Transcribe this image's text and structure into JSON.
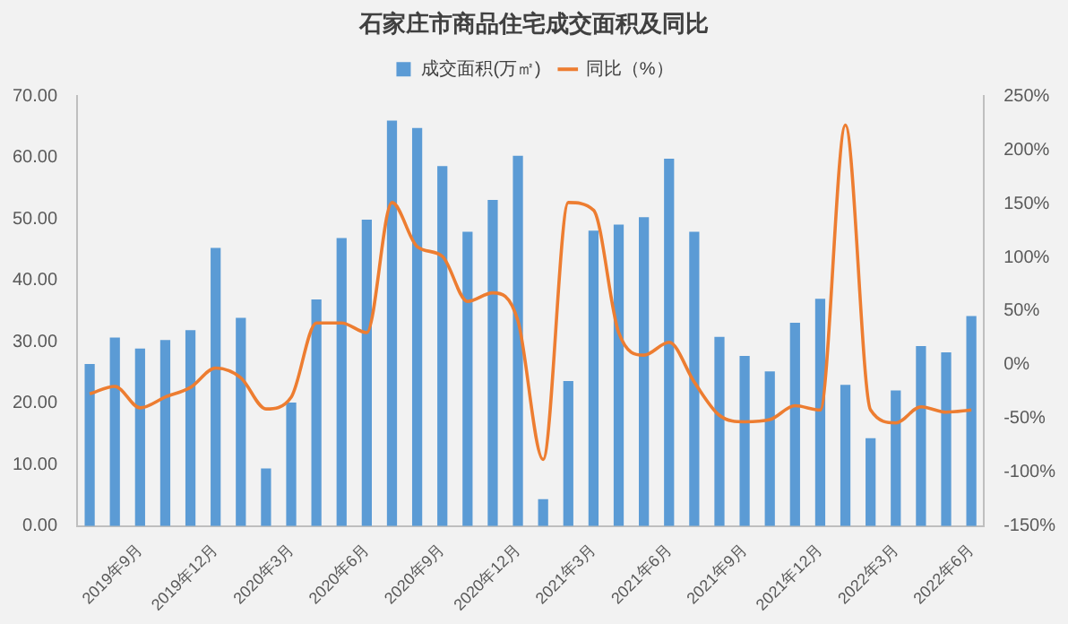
{
  "chart_data": {
    "type": "bar",
    "title": "石家庄市商品住宅成交面积及同比",
    "categories": [
      null,
      null,
      "2019年9月",
      null,
      null,
      "2019年12月",
      null,
      null,
      "2020年3月",
      null,
      null,
      "2020年6月",
      null,
      null,
      "2020年9月",
      null,
      null,
      "2020年12月",
      null,
      null,
      "2021年3月",
      null,
      null,
      "2021年6月",
      null,
      null,
      "2021年9月",
      null,
      null,
      "2021年12月",
      null,
      null,
      "2022年3月",
      null,
      null,
      "2022年6月"
    ],
    "series": [
      {
        "name": "成交面积(万㎡)",
        "color": "#5b9bd5",
        "values": [
          26.4,
          30.7,
          28.9,
          30.3,
          31.9,
          45.3,
          33.9,
          9.4,
          20.1,
          36.9,
          46.9,
          49.9,
          66.0,
          64.8,
          58.6,
          47.9,
          53.1,
          60.3,
          4.4,
          23.6,
          48.1,
          49.1,
          50.3,
          59.8,
          47.9,
          30.8,
          27.7,
          25.2,
          33.1,
          37.0,
          23.0,
          14.3,
          22.1,
          29.3,
          28.3,
          34.2
        ]
      },
      {
        "name": "同比（%）",
        "type": "line",
        "axis": "y2",
        "color": "#ed7d31",
        "marker": "none",
        "values": [
          -27,
          -20,
          -40,
          -30,
          -21,
          -3,
          -12,
          -41,
          -30,
          39,
          39,
          30,
          151,
          110,
          101,
          59,
          67,
          41,
          -88,
          151,
          144,
          30,
          9,
          21,
          -16,
          -47,
          -53,
          -51,
          -38,
          -42,
          223,
          -42,
          -54,
          -39,
          -44,
          -42
        ]
      }
    ],
    "ylim": [
      0,
      70
    ],
    "yticks": [
      {
        "value": 0,
        "label": "0.00"
      },
      {
        "value": 10,
        "label": "10.00"
      },
      {
        "value": 20,
        "label": "20.00"
      },
      {
        "value": 30,
        "label": "30.00"
      },
      {
        "value": 40,
        "label": "40.00"
      },
      {
        "value": 50,
        "label": "50.00"
      },
      {
        "value": 60,
        "label": "60.00"
      },
      {
        "value": 70,
        "label": "70.00"
      }
    ],
    "y2lim": [
      -150,
      250
    ],
    "y2ticks": [
      {
        "value": -150,
        "label": "-150%"
      },
      {
        "value": -100,
        "label": "-100%"
      },
      {
        "value": -50,
        "label": "-50%"
      },
      {
        "value": 0,
        "label": "0%"
      },
      {
        "value": 50,
        "label": "50%"
      },
      {
        "value": 100,
        "label": "100%"
      },
      {
        "value": 150,
        "label": "150%"
      },
      {
        "value": 200,
        "label": "200%"
      },
      {
        "value": 250,
        "label": "250%"
      }
    ],
    "grid": false,
    "legend": "top"
  }
}
